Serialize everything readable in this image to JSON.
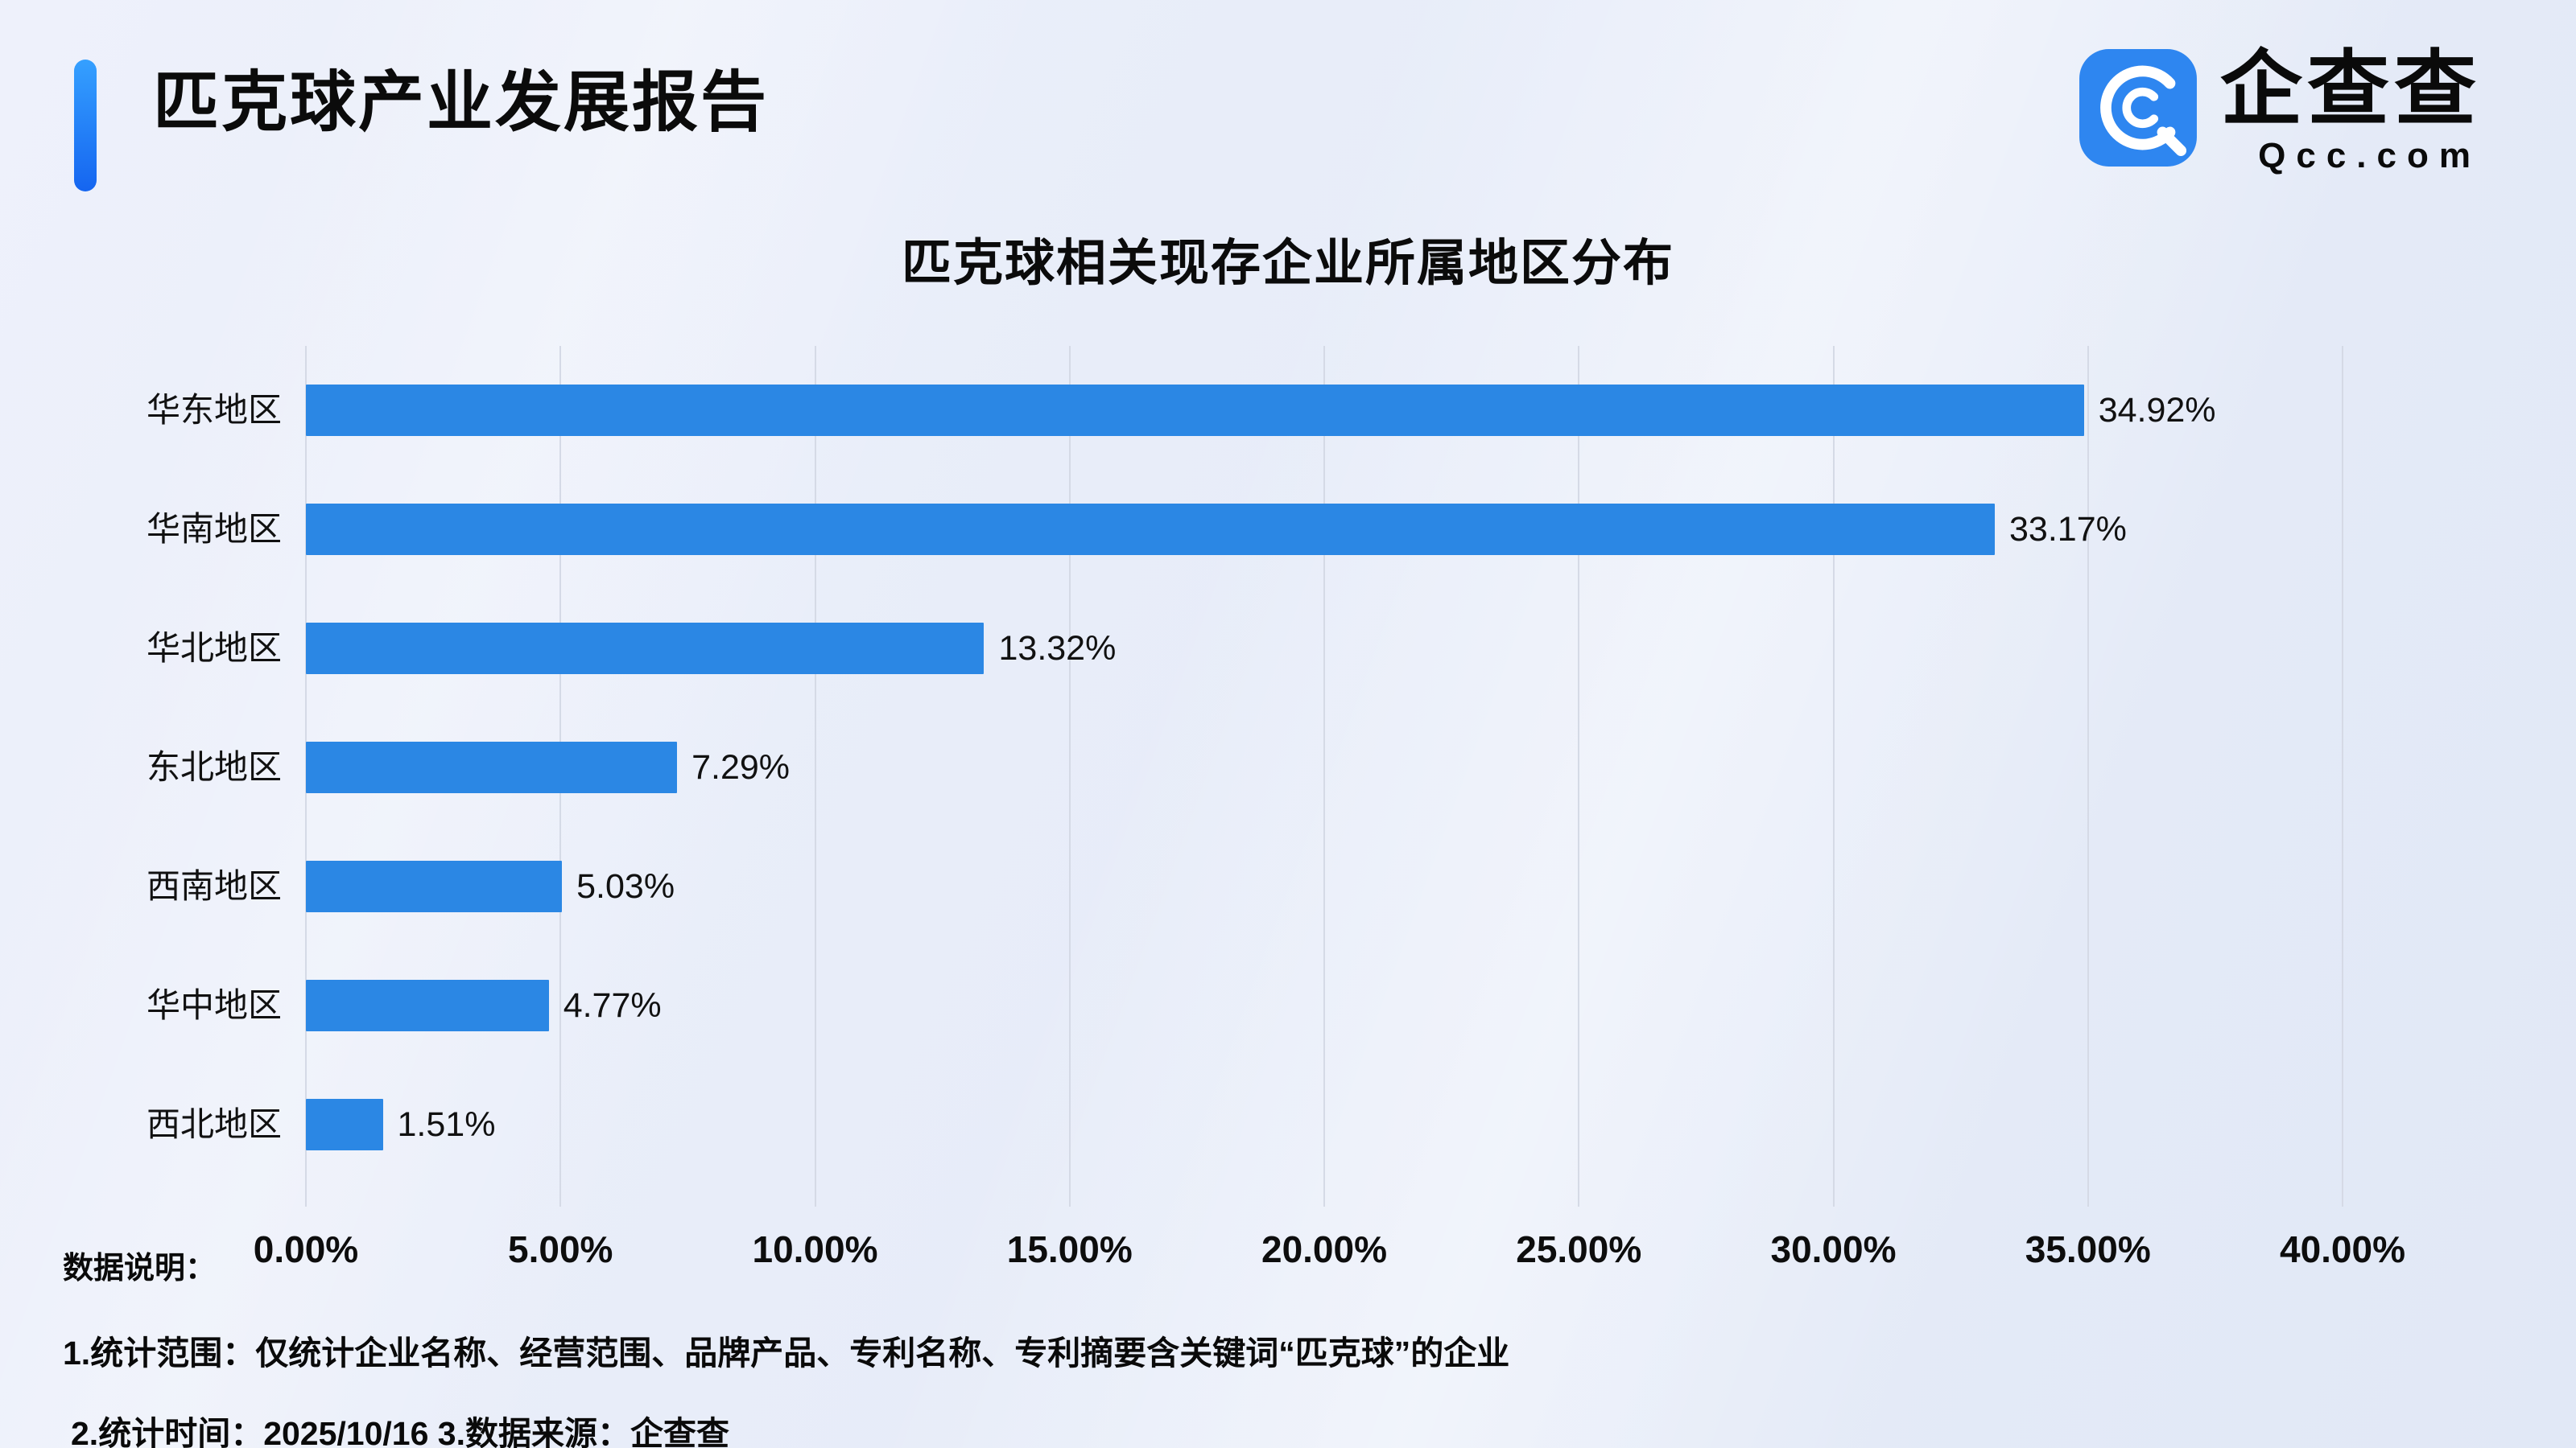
{
  "header": {
    "title": "匹克球产业发展报告",
    "logo_text": "企查查",
    "logo_domain": "Qcc.com"
  },
  "chart_data": {
    "type": "bar",
    "orientation": "horizontal",
    "title": "匹克球相关现存企业所属地区分布",
    "categories": [
      "华东地区",
      "华南地区",
      "华北地区",
      "东北地区",
      "西南地区",
      "华中地区",
      "西北地区"
    ],
    "values": [
      34.92,
      33.17,
      13.32,
      7.29,
      5.03,
      4.77,
      1.51
    ],
    "value_labels": [
      "34.92%",
      "33.17%",
      "13.32%",
      "7.29%",
      "5.03%",
      "4.77%",
      "1.51%"
    ],
    "x_ticks": [
      "0.00%",
      "5.00%",
      "10.00%",
      "15.00%",
      "20.00%",
      "25.00%",
      "30.00%",
      "35.00%",
      "40.00%"
    ],
    "xlim": [
      0,
      40
    ],
    "xlabel": "",
    "ylabel": "",
    "grid": true,
    "legend": false,
    "bar_color": "#2B87E4"
  },
  "footer": {
    "heading": "数据说明：",
    "line1": "1.统计范围：仅统计企业名称、经营范围、品牌产品、专利名称、专利摘要含关键词“匹克球”的企业",
    "line2": "2.统计时间：2025/10/16 3.数据来源：企查查"
  },
  "colors": {
    "accent": "#1C7DF2",
    "bar": "#2B87E4",
    "background": "#E8EDF9",
    "gridline": "#D5DAE6"
  }
}
